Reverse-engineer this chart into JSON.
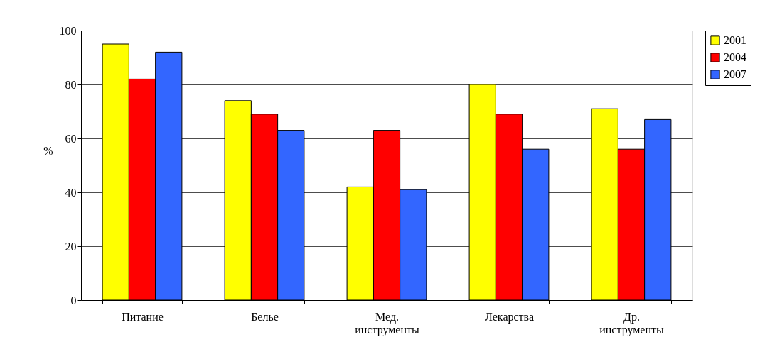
{
  "chart_data": {
    "type": "bar",
    "ylabel": "%",
    "categories": [
      "Питание",
      "Белье",
      "Мед. инструменты",
      "Лекарства",
      "Др. инструменты"
    ],
    "series": [
      {
        "name": "2001",
        "color": "#ffff00",
        "values": [
          95,
          74,
          42,
          80,
          71
        ]
      },
      {
        "name": "2004",
        "color": "#ff0000",
        "values": [
          82,
          69,
          63,
          69,
          56
        ]
      },
      {
        "name": "2007",
        "color": "#3366ff",
        "values": [
          92,
          63,
          41,
          56,
          67
        ]
      }
    ],
    "ylim": [
      0,
      100
    ],
    "yticks": [
      0,
      20,
      40,
      60,
      80,
      100
    ],
    "grid": "y",
    "legend": "right"
  }
}
